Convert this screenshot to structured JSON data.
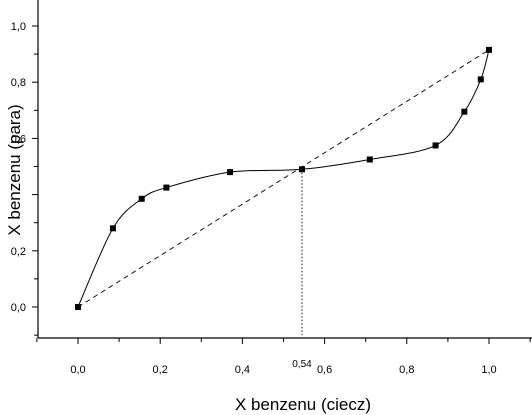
{
  "chart_data": {
    "type": "scatter",
    "title": "",
    "xlabel": "X benzenu (ciecz)",
    "ylabel": "X benzenu (para)",
    "xlim": [
      -0.1,
      1.1
    ],
    "ylim": [
      -0.1,
      1.0
    ],
    "x_ticks": [
      {
        "value": 0.0,
        "label": "0,0"
      },
      {
        "value": 0.2,
        "label": "0,2"
      },
      {
        "value": 0.4,
        "label": "0,4"
      },
      {
        "value": 0.6,
        "label": "0,6"
      },
      {
        "value": 0.8,
        "label": "0,8"
      },
      {
        "value": 1.0,
        "label": "1,0"
      }
    ],
    "y_ticks": [
      {
        "value": 0.0,
        "label": "0,0"
      },
      {
        "value": 0.2,
        "label": "0,2"
      },
      {
        "value": 0.4,
        "label": ""
      },
      {
        "value": 0.6,
        "label": "0,6"
      },
      {
        "value": 0.8,
        "label": "0,8"
      },
      {
        "value": 1.0,
        "label": "1,0"
      }
    ],
    "grid": false,
    "series": [
      {
        "style": "points-with-smooth-curve",
        "color": "#000000",
        "points": [
          [
            0.0,
            0.0
          ],
          [
            0.085,
            0.28
          ],
          [
            0.155,
            0.385
          ],
          [
            0.215,
            0.425
          ],
          [
            0.37,
            0.48
          ],
          [
            0.545,
            0.49
          ],
          [
            0.71,
            0.525
          ],
          [
            0.87,
            0.575
          ],
          [
            0.94,
            0.695
          ],
          [
            0.98,
            0.81
          ],
          [
            1.0,
            0.915
          ]
        ]
      },
      {
        "style": "dashed-line",
        "color": "#000000",
        "points": [
          [
            0.0,
            0.0
          ],
          [
            1.0,
            0.915
          ]
        ]
      },
      {
        "style": "dotted-drop-line",
        "color": "#000000",
        "points": [
          [
            0.545,
            0.49
          ],
          [
            0.545,
            -0.1
          ]
        ]
      }
    ],
    "annotations": [
      {
        "text": "0,54",
        "x": 0.545
      }
    ]
  }
}
